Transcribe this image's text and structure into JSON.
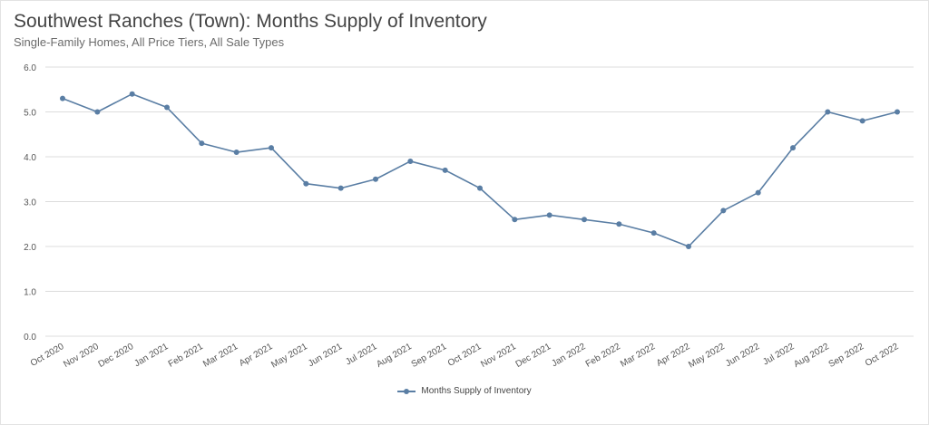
{
  "header": {
    "title": "Southwest Ranches (Town): Months Supply of Inventory",
    "subtitle": "Single-Family Homes, All Price Tiers, All Sale Types"
  },
  "chart_data": {
    "type": "line",
    "title": "Southwest Ranches (Town): Months Supply of Inventory",
    "subtitle": "Single-Family Homes, All Price Tiers, All Sale Types",
    "xlabel": "",
    "ylabel": "",
    "categories": [
      "Oct 2020",
      "Nov 2020",
      "Dec 2020",
      "Jan 2021",
      "Feb 2021",
      "Mar 2021",
      "Apr 2021",
      "May 2021",
      "Jun 2021",
      "Jul 2021",
      "Aug 2021",
      "Sep 2021",
      "Oct 2021",
      "Nov 2021",
      "Dec 2021",
      "Jan 2022",
      "Feb 2022",
      "Mar 2022",
      "Apr 2022",
      "May 2022",
      "Jun 2022",
      "Jul 2022",
      "Aug 2022",
      "Sep 2022",
      "Oct 2022"
    ],
    "series": [
      {
        "name": "Months Supply of Inventory",
        "color": "#5a7ea4",
        "values": [
          5.3,
          5.0,
          5.4,
          5.1,
          4.3,
          4.1,
          4.2,
          3.4,
          3.3,
          3.5,
          3.9,
          3.7,
          3.3,
          2.6,
          2.7,
          2.6,
          2.5,
          2.3,
          2.0,
          2.8,
          3.2,
          4.2,
          5.0,
          4.8,
          5.0
        ]
      }
    ],
    "ylim": [
      0,
      6
    ],
    "yticks": [
      "0.0",
      "1.0",
      "2.0",
      "3.0",
      "4.0",
      "5.0",
      "6.0"
    ],
    "grid": true,
    "legend_position": "bottom"
  },
  "colors": {
    "series": "#5a7ea4",
    "grid": "#dcdcdc",
    "axis_text": "#555555"
  }
}
